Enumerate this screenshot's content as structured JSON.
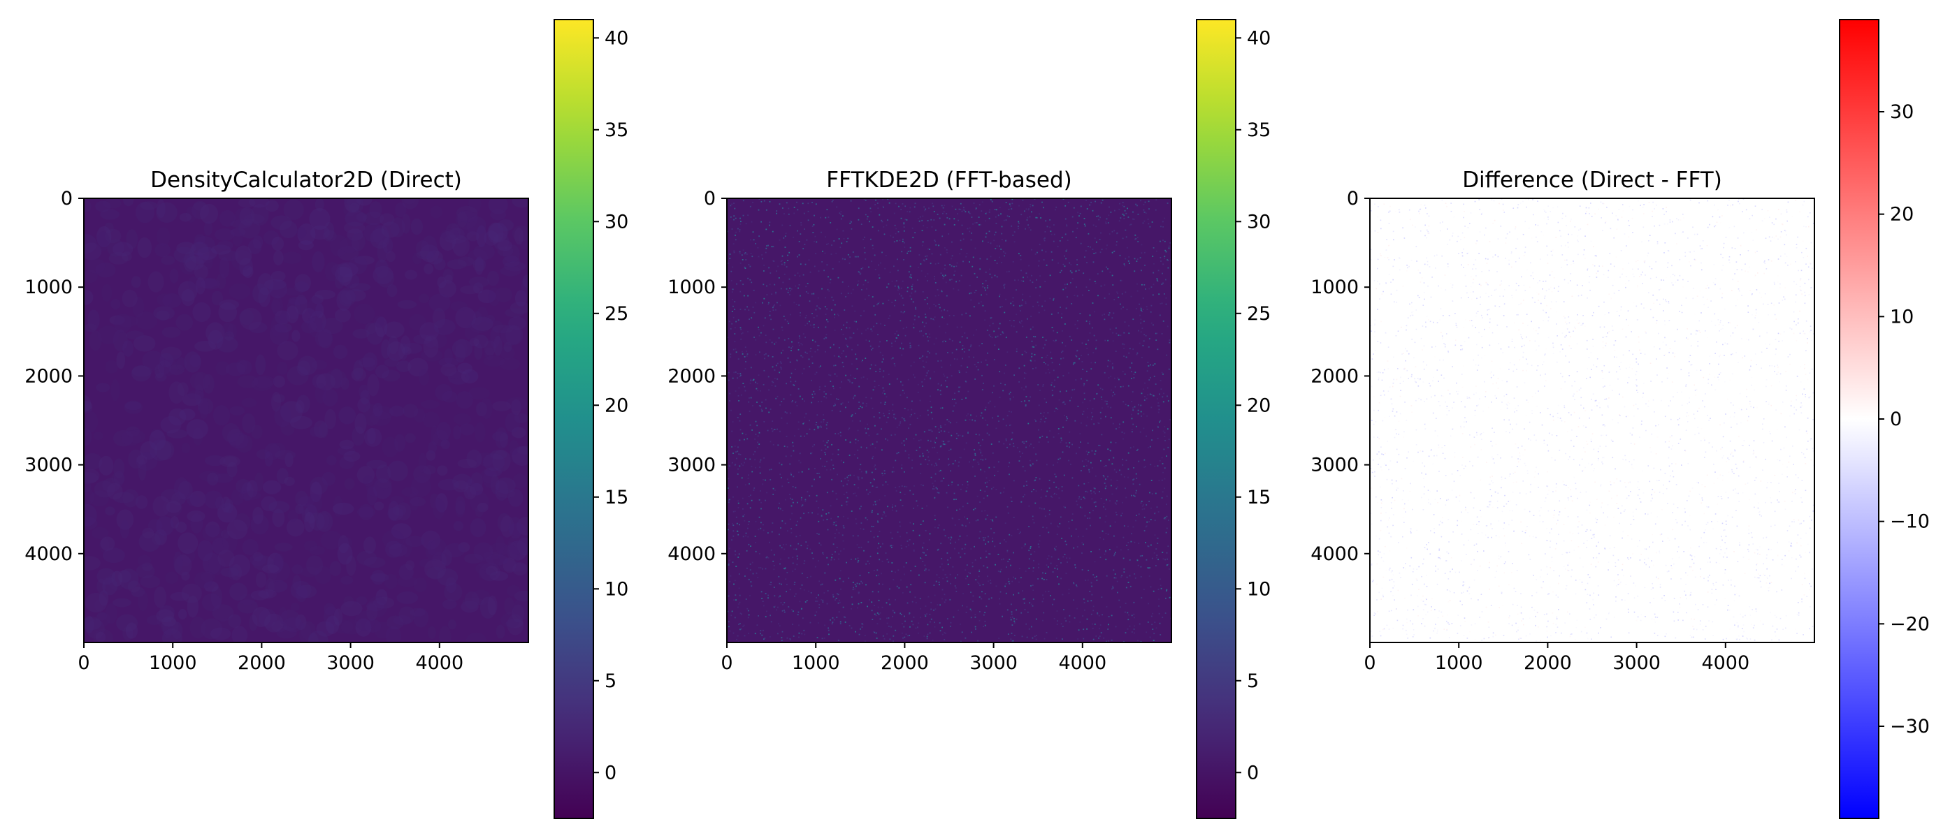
{
  "chart_data": [
    {
      "type": "heatmap",
      "title": "DensityCalculator2D (Direct)",
      "colormap": "viridis",
      "texture": "smooth",
      "xticks": [
        "0",
        "1000",
        "2000",
        "3000",
        "4000"
      ],
      "yticks": [
        "0",
        "1000",
        "2000",
        "3000",
        "4000"
      ],
      "xlim": [
        0,
        5000
      ],
      "ylim": [
        5000,
        0
      ],
      "grid": false,
      "colorbar": {
        "min": -2.5,
        "max": 41,
        "ticks": [
          0,
          5,
          10,
          15,
          20,
          25,
          30,
          35,
          40
        ],
        "tick_labels": [
          "0",
          "5",
          "10",
          "15",
          "20",
          "25",
          "30",
          "35",
          "40"
        ]
      },
      "background_value": 0.3
    },
    {
      "type": "heatmap",
      "title": "FFTKDE2D (FFT-based)",
      "colormap": "viridis",
      "texture": "speckled",
      "xticks": [
        "0",
        "1000",
        "2000",
        "3000",
        "4000"
      ],
      "yticks": [
        "0",
        "1000",
        "2000",
        "3000",
        "4000"
      ],
      "xlim": [
        0,
        5000
      ],
      "ylim": [
        5000,
        0
      ],
      "grid": false,
      "colorbar": {
        "min": -2.5,
        "max": 41,
        "ticks": [
          0,
          5,
          10,
          15,
          20,
          25,
          30,
          35,
          40
        ],
        "tick_labels": [
          "0",
          "5",
          "10",
          "15",
          "20",
          "25",
          "30",
          "35",
          "40"
        ]
      },
      "background_value": 0.3
    },
    {
      "type": "heatmap",
      "title": "Difference (Direct - FFT)",
      "colormap": "bwr",
      "texture": "sparse-points",
      "xticks": [
        "0",
        "1000",
        "2000",
        "3000",
        "4000"
      ],
      "yticks": [
        "0",
        "1000",
        "2000",
        "3000",
        "4000"
      ],
      "xlim": [
        0,
        5000
      ],
      "ylim": [
        5000,
        0
      ],
      "grid": false,
      "colorbar": {
        "min": -39,
        "max": 39,
        "ticks": [
          -30,
          -20,
          -10,
          0,
          10,
          20,
          30
        ],
        "tick_labels": [
          "−30",
          "−20",
          "−10",
          "0",
          "10",
          "20",
          "30"
        ]
      },
      "background_value": 0
    }
  ]
}
